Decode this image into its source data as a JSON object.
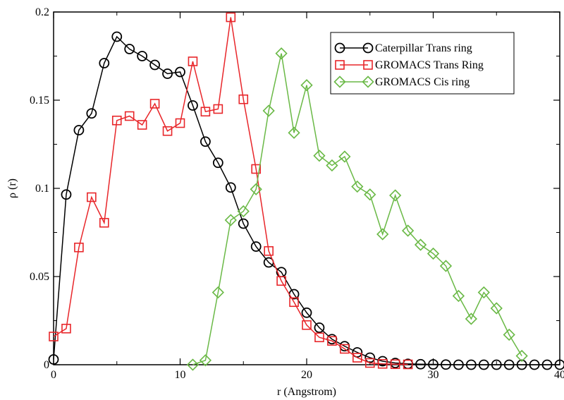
{
  "chart_data": {
    "type": "line",
    "title": "",
    "xlabel": "r (Angstrom)",
    "ylabel": "ρ (r)",
    "xlim": [
      0,
      40
    ],
    "ylim": [
      0,
      0.2
    ],
    "xticks": [
      0,
      10,
      20,
      30,
      40
    ],
    "xtick_labels": [
      "0",
      "10",
      "20",
      "30",
      "40"
    ],
    "yticks": [
      0,
      0.05,
      0.1,
      0.15,
      0.2
    ],
    "ytick_labels": [
      "0",
      "0.05",
      "0.1",
      "0.15",
      "0.2"
    ],
    "grid": false,
    "legend_position": "top-right",
    "series": [
      {
        "name": "Caterpillar Trans ring",
        "color": "#000000",
        "marker": "circle",
        "x": [
          0,
          1,
          2,
          3,
          4,
          5,
          6,
          7,
          8,
          9,
          10,
          11,
          12,
          13,
          14,
          15,
          16,
          17,
          18,
          19,
          20,
          21,
          22,
          23,
          24,
          25,
          26,
          27,
          28,
          29,
          30,
          31,
          32,
          33,
          34,
          35,
          36,
          37,
          38,
          39,
          40
        ],
        "y": [
          0.003,
          0.0965,
          0.133,
          0.1425,
          0.171,
          0.186,
          0.179,
          0.175,
          0.17,
          0.165,
          0.166,
          0.147,
          0.1265,
          0.1145,
          0.1005,
          0.08,
          0.067,
          0.058,
          0.0525,
          0.04,
          0.0295,
          0.021,
          0.0145,
          0.0105,
          0.007,
          0.004,
          0.002,
          0.001,
          0.0005,
          0.0003,
          0.0002,
          0.0001,
          0,
          0,
          0,
          0,
          0,
          0,
          0,
          0,
          0
        ]
      },
      {
        "name": "GROMACS Trans Ring",
        "color": "#e8262a",
        "marker": "square",
        "x": [
          0,
          1,
          2,
          3,
          4,
          5,
          6,
          7,
          8,
          9,
          10,
          11,
          12,
          13,
          14,
          15,
          16,
          17,
          18,
          19,
          20,
          21,
          22,
          23,
          24,
          25,
          26,
          27,
          28
        ],
        "y": [
          0.016,
          0.0205,
          0.0665,
          0.095,
          0.0805,
          0.1385,
          0.141,
          0.136,
          0.148,
          0.1325,
          0.137,
          0.172,
          0.1435,
          0.145,
          0.197,
          0.1505,
          0.111,
          0.0645,
          0.0475,
          0.0355,
          0.0225,
          0.0155,
          0.0135,
          0.009,
          0.004,
          0.001,
          0.0005,
          0.0003,
          0.0002
        ]
      },
      {
        "name": "GROMACS Cis ring",
        "color": "#6ab946",
        "marker": "diamond",
        "x": [
          11,
          12,
          13,
          14,
          15,
          16,
          17,
          18,
          19,
          20,
          21,
          22,
          23,
          24,
          25,
          26,
          27,
          28,
          29,
          30,
          31,
          32,
          33,
          34,
          35,
          36,
          37
        ],
        "y": [
          0,
          0.0025,
          0.041,
          0.082,
          0.087,
          0.0995,
          0.144,
          0.1765,
          0.1315,
          0.1585,
          0.1185,
          0.113,
          0.118,
          0.101,
          0.0965,
          0.074,
          0.096,
          0.076,
          0.068,
          0.063,
          0.056,
          0.039,
          0.026,
          0.041,
          0.032,
          0.017,
          0.005
        ]
      }
    ]
  }
}
